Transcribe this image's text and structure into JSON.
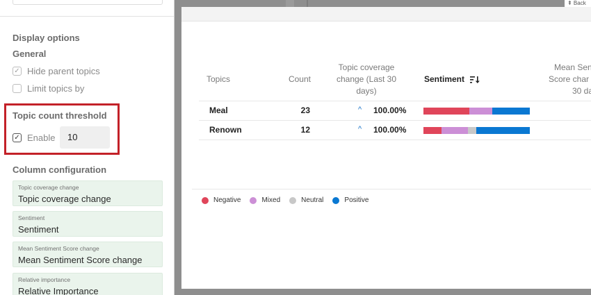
{
  "display_options": {
    "title": "Display options",
    "general_title": "General",
    "hide_parent_topics": {
      "label": "Hide parent topics",
      "checked": true
    },
    "limit_topics_by": {
      "label": "Limit topics by",
      "checked": false
    }
  },
  "threshold": {
    "title": "Topic count threshold",
    "enable_label": "Enable",
    "enabled": true,
    "value": "10"
  },
  "column_configuration": {
    "title": "Column configuration",
    "cards": [
      {
        "small": "Topic coverage change",
        "value": "Topic coverage change"
      },
      {
        "small": "Sentiment",
        "value": "Sentiment"
      },
      {
        "small": "Mean Sentiment Score change",
        "value": "Mean Sentiment Score change"
      },
      {
        "small": "Relative importance",
        "value": "Relative Importance"
      }
    ]
  },
  "background": {
    "back_label": "⇞ Back"
  },
  "table": {
    "headers": {
      "topics": "Topics",
      "count": "Count",
      "coverage_line1": "Topic coverage",
      "coverage_line2": "change (Last 30",
      "coverage_line3": "days)",
      "sentiment": "Sentiment",
      "mean_line1": "Mean Sen",
      "mean_line2": "Score char",
      "mean_line3": "30 da"
    },
    "rows": [
      {
        "topic": "Meal",
        "count": "23",
        "coverage": "100.00%",
        "sentiment": {
          "negative": 0.43,
          "mixed": 0.22,
          "neutral": 0.0,
          "positive": 0.35
        }
      },
      {
        "topic": "Renown",
        "count": "12",
        "coverage": "100.00%",
        "sentiment": {
          "negative": 0.17,
          "mixed": 0.25,
          "neutral": 0.08,
          "positive": 0.5
        }
      }
    ]
  },
  "legend": [
    {
      "label": "Negative",
      "color": "#e0455a"
    },
    {
      "label": "Mixed",
      "color": "#cc8fd6"
    },
    {
      "label": "Neutral",
      "color": "#c8c8c8"
    },
    {
      "label": "Positive",
      "color": "#0a78d2"
    }
  ],
  "icons": {
    "check": "check-icon",
    "sort": "sort-descending-icon",
    "chevron": "chevron-up-icon"
  }
}
